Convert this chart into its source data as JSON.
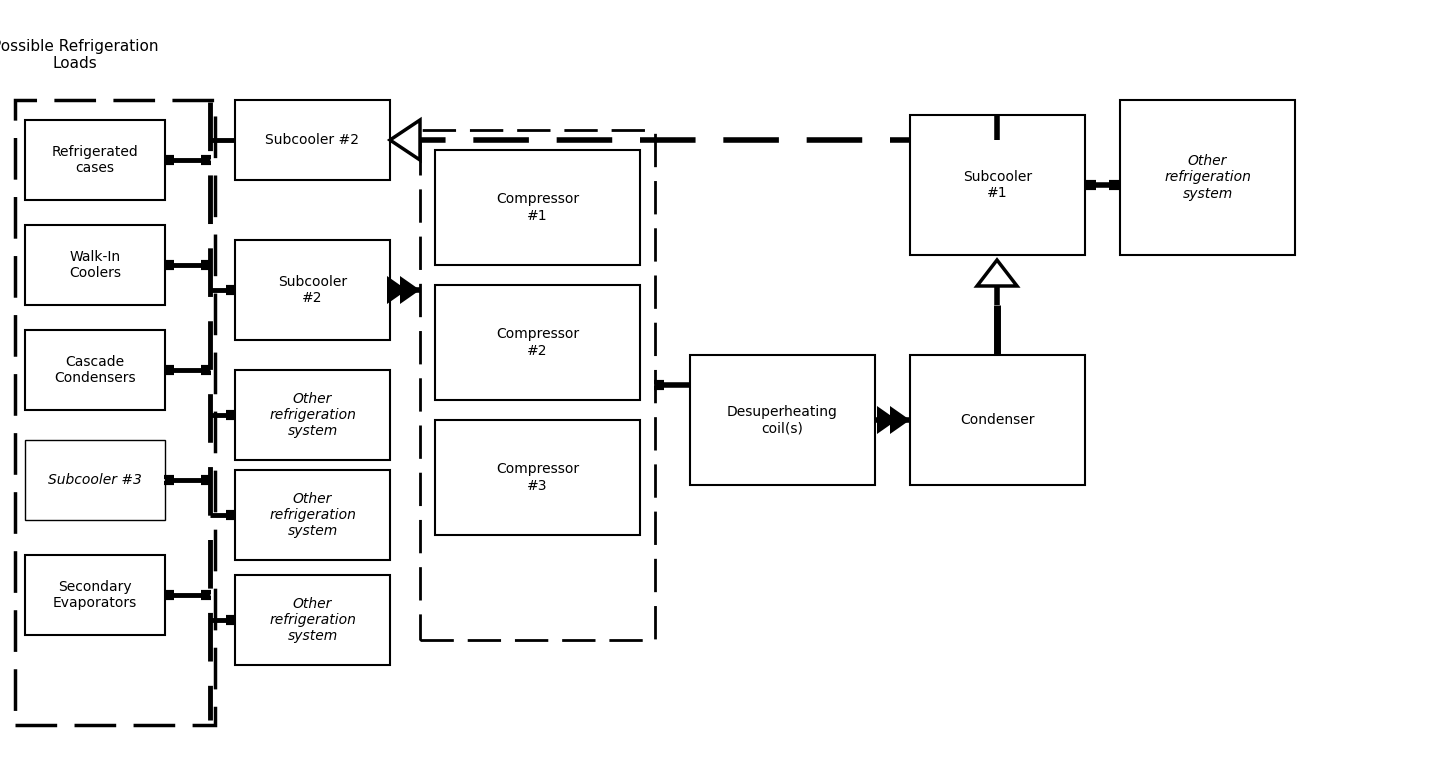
{
  "bg_color": "#ffffff",
  "possible_loads_label": "Possible Refrigeration\nLoads",
  "left_boxes": [
    {
      "label": "Refrigerated\ncases",
      "italic": false
    },
    {
      "label": "Walk-In\nCoolers",
      "italic": false
    },
    {
      "label": "Cascade\nCondensers",
      "italic": false
    },
    {
      "label": "Subcooler #3",
      "italic": true,
      "thin": true
    },
    {
      "label": "Secondary\nEvaporators",
      "italic": false
    }
  ],
  "mid_boxes": [
    {
      "label": "Subcooler #2",
      "italic": false,
      "top": true
    },
    {
      "label": "Subcooler\n#2",
      "italic": false
    },
    {
      "label": "Other\nrefrigeration\nsystem",
      "italic": true
    },
    {
      "label": "Other\nrefrigeration\nsystem",
      "italic": true
    },
    {
      "label": "Other\nrefrigeration\nsystem",
      "italic": true
    }
  ],
  "comp_labels": [
    "Compressor\n#1",
    "Compressor\n#2",
    "Compressor\n#3"
  ],
  "desup_label": "Desuperheating\ncoil(s)",
  "condenser_label": "Condenser",
  "subcooler1_label": "Subcooler\n#1",
  "other_right_label": "Other\nrefrigeration\nsystem"
}
